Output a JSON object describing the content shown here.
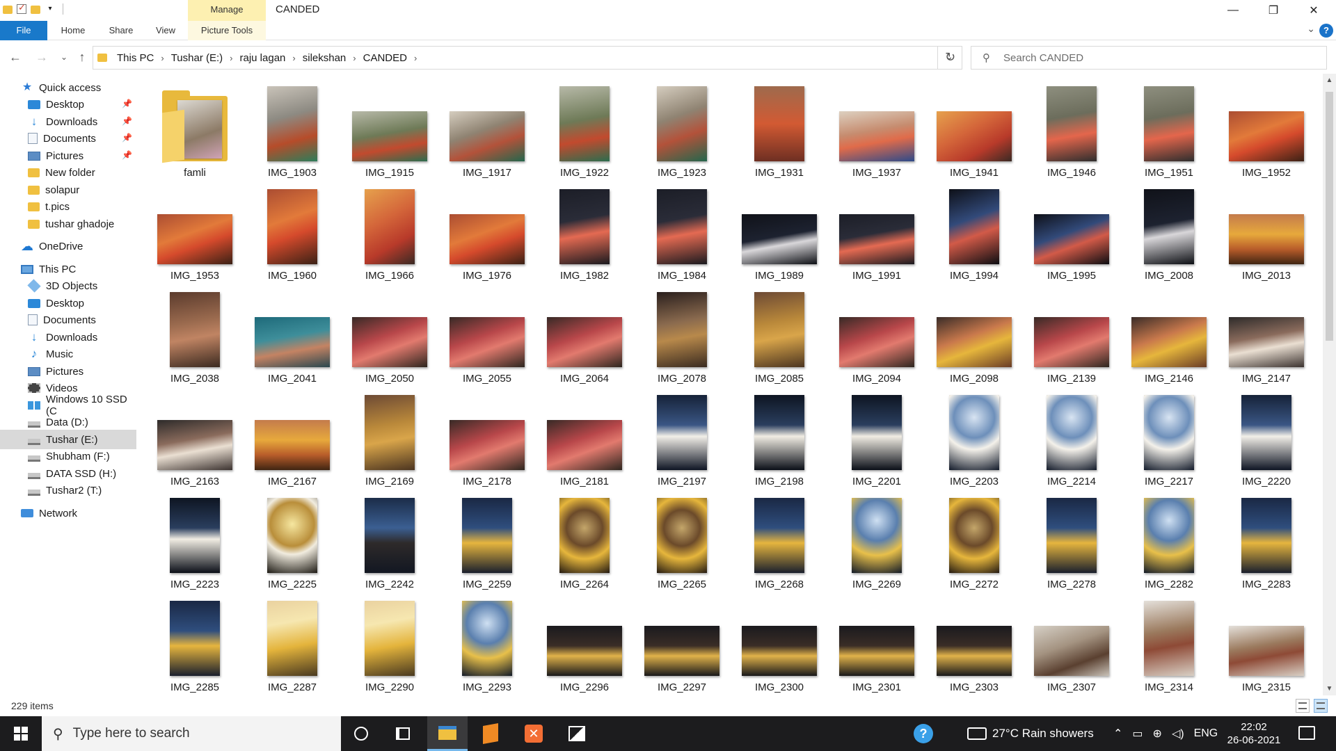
{
  "window": {
    "title": "CANDED",
    "contextual_tab": "Manage",
    "controls": {
      "minimize": "—",
      "maximize": "❐",
      "close": "✕"
    }
  },
  "ribbon": {
    "tabs": [
      "File",
      "Home",
      "Share",
      "View",
      "Picture Tools"
    ]
  },
  "address": {
    "breadcrumb": [
      "This PC",
      "Tushar (E:)",
      "raju lagan",
      "silekshan",
      "CANDED"
    ],
    "search_placeholder": "Search CANDED"
  },
  "nav_pane": {
    "items": [
      {
        "label": "Quick access",
        "icon": "star-icon",
        "pinned": false,
        "selected": false
      },
      {
        "label": "Desktop",
        "icon": "desktop-icon",
        "pinned": true,
        "selected": false
      },
      {
        "label": "Downloads",
        "icon": "download-icon",
        "pinned": true,
        "selected": false
      },
      {
        "label": "Documents",
        "icon": "documents-icon",
        "pinned": true,
        "selected": false
      },
      {
        "label": "Pictures",
        "icon": "pictures-icon",
        "pinned": true,
        "selected": false
      },
      {
        "label": "New folder",
        "icon": "folder-icon",
        "pinned": false,
        "selected": false
      },
      {
        "label": "solapur",
        "icon": "folder-icon",
        "pinned": false,
        "selected": false
      },
      {
        "label": "t.pics",
        "icon": "folder-icon",
        "pinned": false,
        "selected": false
      },
      {
        "label": "tushar ghadoje",
        "icon": "folder-icon",
        "pinned": false,
        "selected": false
      },
      {
        "label": "OneDrive",
        "icon": "cloud-icon",
        "pinned": false,
        "selected": false
      },
      {
        "label": "This PC",
        "icon": "computer-icon",
        "pinned": false,
        "selected": false
      },
      {
        "label": "3D Objects",
        "icon": "3d-objects-icon",
        "pinned": false,
        "selected": false
      },
      {
        "label": "Desktop",
        "icon": "desktop-icon",
        "pinned": false,
        "selected": false
      },
      {
        "label": "Documents",
        "icon": "documents-icon",
        "pinned": false,
        "selected": false
      },
      {
        "label": "Downloads",
        "icon": "download-icon",
        "pinned": false,
        "selected": false
      },
      {
        "label": "Music",
        "icon": "music-icon",
        "pinned": false,
        "selected": false
      },
      {
        "label": "Pictures",
        "icon": "pictures-icon",
        "pinned": false,
        "selected": false
      },
      {
        "label": "Videos",
        "icon": "videos-icon",
        "pinned": false,
        "selected": false
      },
      {
        "label": "Windows 10 SSD (C",
        "icon": "windows-drive-icon",
        "pinned": false,
        "selected": false
      },
      {
        "label": "Data (D:)",
        "icon": "drive-icon",
        "pinned": false,
        "selected": false
      },
      {
        "label": "Tushar (E:)",
        "icon": "drive-icon",
        "pinned": false,
        "selected": true
      },
      {
        "label": "Shubham (F:)",
        "icon": "drive-icon",
        "pinned": false,
        "selected": false
      },
      {
        "label": "DATA SSD (H:)",
        "icon": "drive-icon",
        "pinned": false,
        "selected": false
      },
      {
        "label": "Tushar2 (T:)",
        "icon": "drive-icon",
        "pinned": false,
        "selected": false
      },
      {
        "label": "Network",
        "icon": "network-icon",
        "pinned": false,
        "selected": false
      }
    ]
  },
  "files": [
    {
      "name": "famli",
      "kind": "folder"
    },
    {
      "name": "IMG_1903",
      "kind": "portrait",
      "palette": "p1"
    },
    {
      "name": "IMG_1915",
      "kind": "landscape",
      "palette": "p2"
    },
    {
      "name": "IMG_1917",
      "kind": "landscape",
      "palette": "p3"
    },
    {
      "name": "IMG_1922",
      "kind": "portrait",
      "palette": "p2"
    },
    {
      "name": "IMG_1923",
      "kind": "portrait",
      "palette": "p3"
    },
    {
      "name": "IMG_1931",
      "kind": "portrait",
      "palette": "p4"
    },
    {
      "name": "IMG_1937",
      "kind": "landscape",
      "palette": "p5"
    },
    {
      "name": "IMG_1941",
      "kind": "landscape",
      "palette": "p6"
    },
    {
      "name": "IMG_1946",
      "kind": "portrait",
      "palette": "p7"
    },
    {
      "name": "IMG_1951",
      "kind": "portrait",
      "palette": "p7"
    },
    {
      "name": "IMG_1952",
      "kind": "landscape",
      "palette": "p8"
    },
    {
      "name": "IMG_1953",
      "kind": "landscape",
      "palette": "p8"
    },
    {
      "name": "IMG_1960",
      "kind": "portrait",
      "palette": "p8"
    },
    {
      "name": "IMG_1966",
      "kind": "portrait",
      "palette": "p6"
    },
    {
      "name": "IMG_1976",
      "kind": "landscape",
      "palette": "p8"
    },
    {
      "name": "IMG_1982",
      "kind": "portrait",
      "palette": "p9"
    },
    {
      "name": "IMG_1984",
      "kind": "portrait",
      "palette": "p9"
    },
    {
      "name": "IMG_1989",
      "kind": "landscape",
      "palette": "p10"
    },
    {
      "name": "IMG_1991",
      "kind": "landscape",
      "palette": "p9"
    },
    {
      "name": "IMG_1994",
      "kind": "portrait",
      "palette": "p11"
    },
    {
      "name": "IMG_1995",
      "kind": "landscape",
      "palette": "p11"
    },
    {
      "name": "IMG_2008",
      "kind": "portrait",
      "palette": "p10"
    },
    {
      "name": "IMG_2013",
      "kind": "landscape",
      "palette": "p12"
    },
    {
      "name": "IMG_2038",
      "kind": "portrait",
      "palette": "p13"
    },
    {
      "name": "IMG_2041",
      "kind": "landscape",
      "palette": "p14"
    },
    {
      "name": "IMG_2050",
      "kind": "landscape",
      "palette": "p15"
    },
    {
      "name": "IMG_2055",
      "kind": "landscape",
      "palette": "p15"
    },
    {
      "name": "IMG_2064",
      "kind": "landscape",
      "palette": "p15"
    },
    {
      "name": "IMG_2078",
      "kind": "portrait",
      "palette": "p16"
    },
    {
      "name": "IMG_2085",
      "kind": "portrait",
      "palette": "p17"
    },
    {
      "name": "IMG_2094",
      "kind": "landscape",
      "palette": "p15"
    },
    {
      "name": "IMG_2098",
      "kind": "landscape",
      "palette": "p18"
    },
    {
      "name": "IMG_2139",
      "kind": "landscape",
      "palette": "p15"
    },
    {
      "name": "IMG_2146",
      "kind": "landscape",
      "palette": "p18"
    },
    {
      "name": "IMG_2147",
      "kind": "landscape",
      "palette": "p19"
    },
    {
      "name": "IMG_2163",
      "kind": "landscape",
      "palette": "p19"
    },
    {
      "name": "IMG_2167",
      "kind": "landscape",
      "palette": "p12"
    },
    {
      "name": "IMG_2169",
      "kind": "portrait",
      "palette": "p17"
    },
    {
      "name": "IMG_2178",
      "kind": "landscape",
      "palette": "p15"
    },
    {
      "name": "IMG_2181",
      "kind": "landscape",
      "palette": "p15"
    },
    {
      "name": "IMG_2197",
      "kind": "portrait",
      "palette": "p20"
    },
    {
      "name": "IMG_2198",
      "kind": "portrait",
      "palette": "p22"
    },
    {
      "name": "IMG_2201",
      "kind": "portrait",
      "palette": "p22"
    },
    {
      "name": "IMG_2203",
      "kind": "portrait",
      "palette": "p21"
    },
    {
      "name": "IMG_2214",
      "kind": "portrait",
      "palette": "p21"
    },
    {
      "name": "IMG_2217",
      "kind": "portrait",
      "palette": "p21"
    },
    {
      "name": "IMG_2220",
      "kind": "portrait",
      "palette": "p20"
    },
    {
      "name": "IMG_2223",
      "kind": "portrait",
      "palette": "p22"
    },
    {
      "name": "IMG_2225",
      "kind": "portrait",
      "palette": "p23"
    },
    {
      "name": "IMG_2242",
      "kind": "portrait",
      "palette": "p24"
    },
    {
      "name": "IMG_2259",
      "kind": "portrait",
      "palette": "p25"
    },
    {
      "name": "IMG_2264",
      "kind": "portrait",
      "palette": "p26"
    },
    {
      "name": "IMG_2265",
      "kind": "portrait",
      "palette": "p26"
    },
    {
      "name": "IMG_2268",
      "kind": "portrait",
      "palette": "p25"
    },
    {
      "name": "IMG_2269",
      "kind": "portrait",
      "palette": "p27"
    },
    {
      "name": "IMG_2272",
      "kind": "portrait",
      "palette": "p26"
    },
    {
      "name": "IMG_2278",
      "kind": "portrait",
      "palette": "p25"
    },
    {
      "name": "IMG_2282",
      "kind": "portrait",
      "palette": "p27"
    },
    {
      "name": "IMG_2283",
      "kind": "portrait",
      "palette": "p25"
    },
    {
      "name": "IMG_2285",
      "kind": "portrait",
      "palette": "p25"
    },
    {
      "name": "IMG_2287",
      "kind": "portrait",
      "palette": "p28"
    },
    {
      "name": "IMG_2290",
      "kind": "portrait",
      "palette": "p28"
    },
    {
      "name": "IMG_2293",
      "kind": "portrait",
      "palette": "p27"
    },
    {
      "name": "IMG_2296",
      "kind": "landscape",
      "palette": "p29"
    },
    {
      "name": "IMG_2297",
      "kind": "landscape",
      "palette": "p29"
    },
    {
      "name": "IMG_2300",
      "kind": "landscape",
      "palette": "p29"
    },
    {
      "name": "IMG_2301",
      "kind": "landscape",
      "palette": "p29"
    },
    {
      "name": "IMG_2303",
      "kind": "landscape",
      "palette": "p29"
    },
    {
      "name": "IMG_2307",
      "kind": "landscape",
      "palette": "p30"
    },
    {
      "name": "IMG_2314",
      "kind": "portrait",
      "palette": "p31"
    },
    {
      "name": "IMG_2315",
      "kind": "landscape",
      "palette": "p31"
    }
  ],
  "status": {
    "item_count": "229 items"
  },
  "taskbar": {
    "search_placeholder": "Type here to search",
    "weather": "27°C  Rain showers",
    "language": "ENG",
    "time": "22:02",
    "date": "26-06-2021"
  },
  "colors": {
    "accent": "#1979ca",
    "selection": "#d9d9d9",
    "manage_tab": "#fdf0b1",
    "taskbar": "#1c1c1e"
  }
}
